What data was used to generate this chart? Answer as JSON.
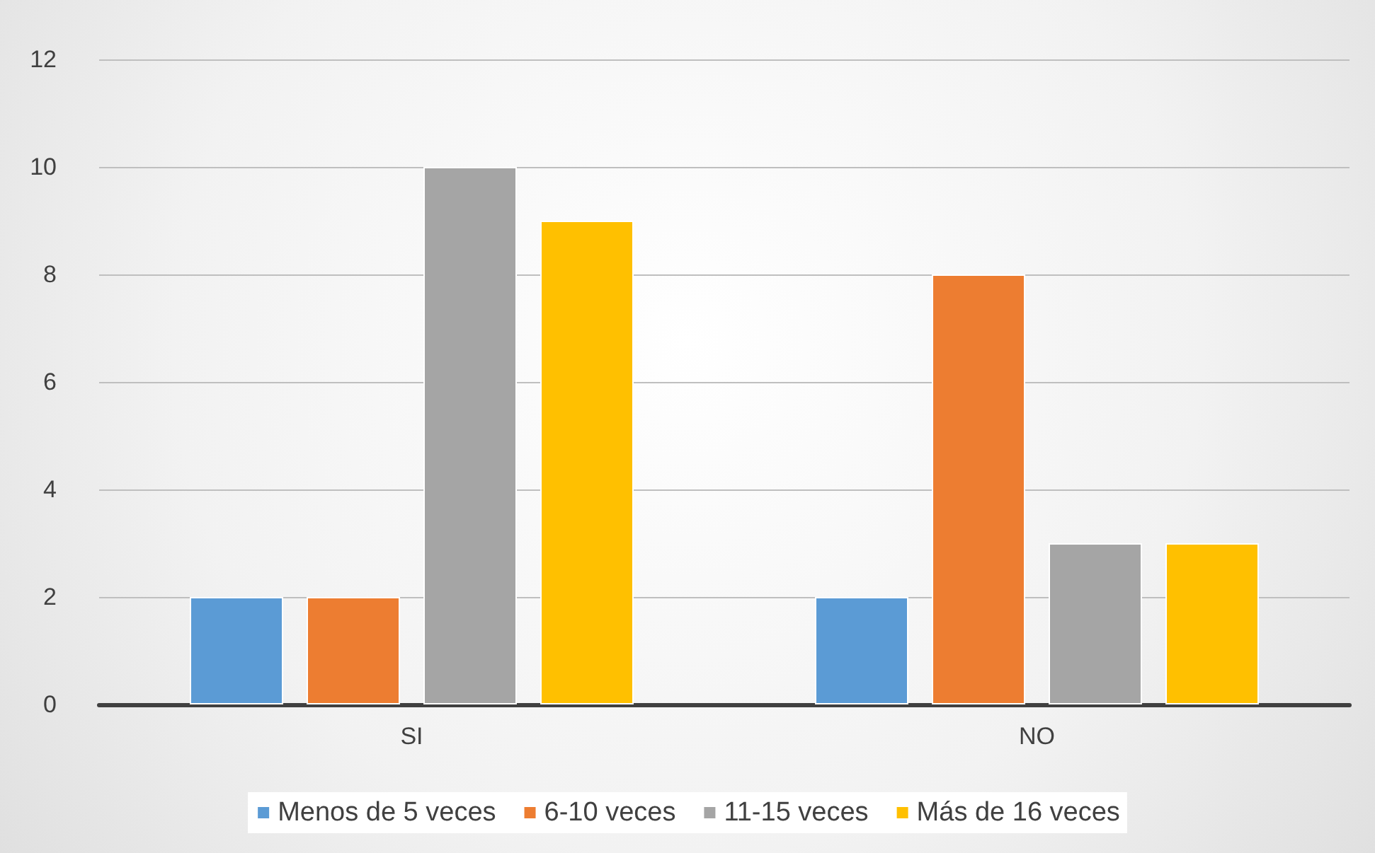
{
  "chart_data": {
    "type": "bar",
    "categories": [
      "SI",
      "NO"
    ],
    "series": [
      {
        "name": "Menos de 5 veces",
        "color": "#5b9bd5",
        "values": [
          2,
          2
        ]
      },
      {
        "name": "6-10 veces",
        "color": "#ed7d31",
        "values": [
          2,
          8
        ]
      },
      {
        "name": "11-15 veces",
        "color": "#a5a5a5",
        "values": [
          10,
          3
        ]
      },
      {
        "name": "Más de 16 veces",
        "color": "#ffc000",
        "values": [
          9,
          3
        ]
      }
    ],
    "ylim": [
      0,
      12
    ],
    "yticks": [
      0,
      2,
      4,
      6,
      8,
      10,
      12
    ],
    "grid": "y",
    "legend": "bottom"
  }
}
